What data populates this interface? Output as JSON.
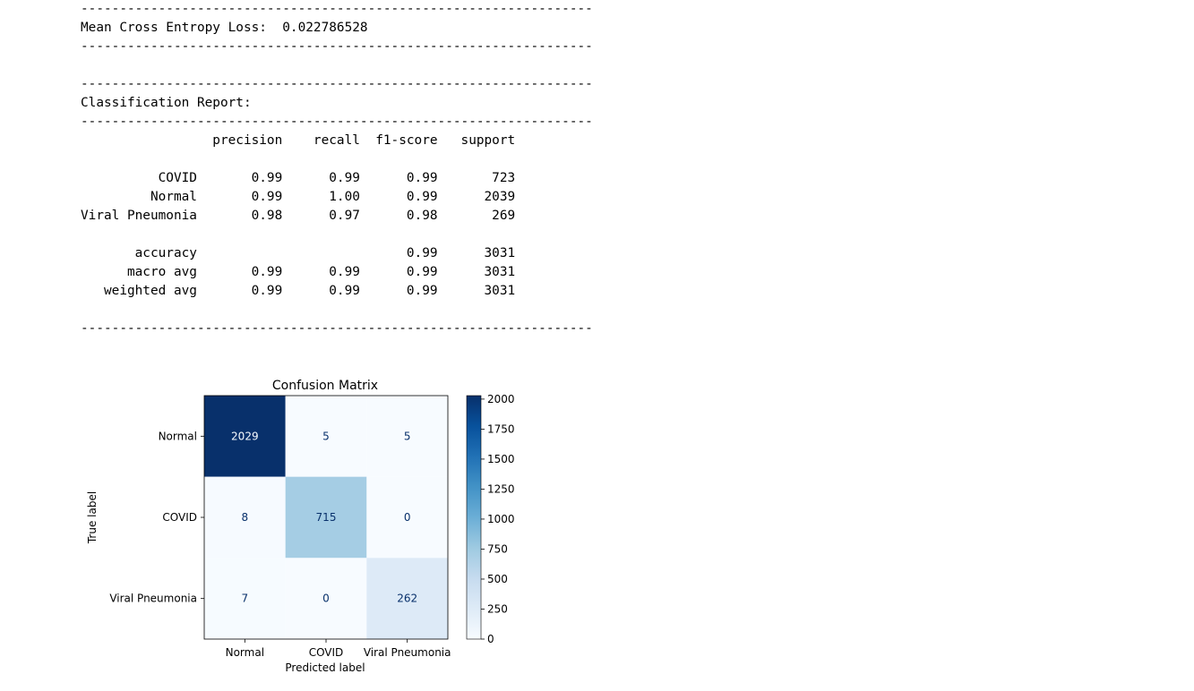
{
  "output_lines": [
    "------------------------------------------------------------------",
    "Mean Cross Entropy Loss:  0.022786528",
    "------------------------------------------------------------------",
    "",
    "------------------------------------------------------------------",
    "Classification Report:",
    "------------------------------------------------------------------",
    "                 precision    recall  f1-score   support",
    "",
    "          COVID       0.99      0.99      0.99       723",
    "         Normal       0.99      1.00      0.99      2039",
    "Viral Pneumonia       0.98      0.97      0.98       269",
    "",
    "       accuracy                           0.99      3031",
    "      macro avg       0.99      0.99      0.99      3031",
    "   weighted avg       0.99      0.99      0.99      3031",
    "",
    "------------------------------------------------------------------"
  ],
  "chart_data": {
    "type": "heatmap",
    "title": "Confusion Matrix",
    "xlabel": "Predicted label",
    "ylabel": "True label",
    "x_categories": [
      "Normal",
      "COVID",
      "Viral Pneumonia"
    ],
    "y_categories": [
      "Normal",
      "COVID",
      "Viral Pneumonia"
    ],
    "matrix": [
      [
        2029,
        5,
        5
      ],
      [
        8,
        715,
        0
      ],
      [
        7,
        0,
        262
      ]
    ],
    "colormap": "Blues",
    "colorbar_ticks": [
      0,
      250,
      500,
      750,
      1000,
      1250,
      1500,
      1750,
      2000
    ],
    "colorbar_range": [
      0,
      2029
    ],
    "colors": {
      "low": "#f7fbff",
      "high": "#08306b",
      "text_dark": "#08306b",
      "text_light": "#f7fbff"
    }
  }
}
